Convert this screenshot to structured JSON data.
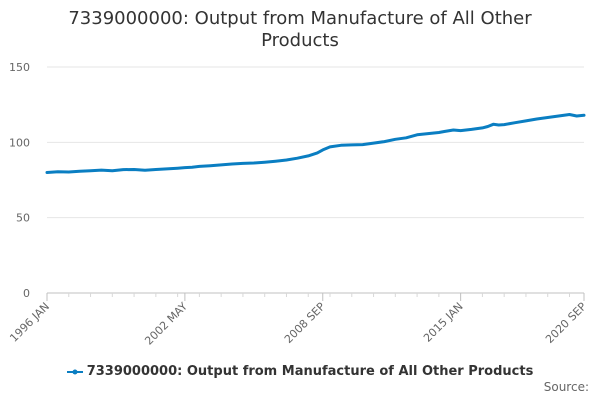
{
  "chart_data": {
    "type": "line",
    "title": "7339000000: Output from Manufacture of All Other Products",
    "xlabel": "",
    "ylabel": "",
    "x_tick_labels": [
      "1996 JAN",
      "2002 MAY",
      "2008 SEP",
      "2015 JAN",
      "2020 SEP"
    ],
    "x_range": [
      "1996-01",
      "2020-09"
    ],
    "ylim": [
      0,
      150
    ],
    "y_ticks": [
      0,
      50,
      100,
      150
    ],
    "grid": "horizontal",
    "legend_position": "bottom",
    "series": [
      {
        "name": "7339000000: Output from Manufacture of All Other Products",
        "color": "#0a7ec2",
        "points": [
          [
            "1996-01",
            80.0
          ],
          [
            "1996-07",
            80.5
          ],
          [
            "1997-01",
            80.3
          ],
          [
            "1997-07",
            80.8
          ],
          [
            "1998-01",
            81.2
          ],
          [
            "1998-07",
            81.6
          ],
          [
            "1999-01",
            81.2
          ],
          [
            "1999-07",
            81.9
          ],
          [
            "2000-01",
            82.0
          ],
          [
            "2000-07",
            81.5
          ],
          [
            "2001-01",
            82.0
          ],
          [
            "2001-07",
            82.4
          ],
          [
            "2002-01",
            82.8
          ],
          [
            "2002-05",
            83.2
          ],
          [
            "2002-09",
            83.5
          ],
          [
            "2003-01",
            84.0
          ],
          [
            "2003-07",
            84.5
          ],
          [
            "2004-01",
            85.0
          ],
          [
            "2004-07",
            85.6
          ],
          [
            "2005-01",
            86.0
          ],
          [
            "2005-07",
            86.3
          ],
          [
            "2006-01",
            86.8
          ],
          [
            "2006-07",
            87.5
          ],
          [
            "2007-01",
            88.3
          ],
          [
            "2007-07",
            89.5
          ],
          [
            "2008-01",
            91.0
          ],
          [
            "2008-06",
            93.0
          ],
          [
            "2008-09",
            95.0
          ],
          [
            "2009-01",
            97.0
          ],
          [
            "2009-07",
            98.0
          ],
          [
            "2010-01",
            98.3
          ],
          [
            "2010-07",
            98.5
          ],
          [
            "2011-01",
            99.5
          ],
          [
            "2011-07",
            100.5
          ],
          [
            "2012-01",
            102.0
          ],
          [
            "2012-07",
            103.0
          ],
          [
            "2013-01",
            105.0
          ],
          [
            "2013-07",
            105.8
          ],
          [
            "2014-01",
            106.5
          ],
          [
            "2014-04",
            107.2
          ],
          [
            "2014-09",
            108.2
          ],
          [
            "2015-01",
            107.8
          ],
          [
            "2015-07",
            108.6
          ],
          [
            "2016-01",
            109.6
          ],
          [
            "2016-04",
            110.5
          ],
          [
            "2016-07",
            112.0
          ],
          [
            "2016-10",
            111.5
          ],
          [
            "2017-01",
            111.8
          ],
          [
            "2017-07",
            113.0
          ],
          [
            "2018-01",
            114.2
          ],
          [
            "2018-07",
            115.5
          ],
          [
            "2019-01",
            116.5
          ],
          [
            "2019-07",
            117.5
          ],
          [
            "2020-01",
            118.5
          ],
          [
            "2020-05",
            117.5
          ],
          [
            "2020-09",
            118.0
          ]
        ]
      }
    ]
  },
  "source_label": "Source:"
}
